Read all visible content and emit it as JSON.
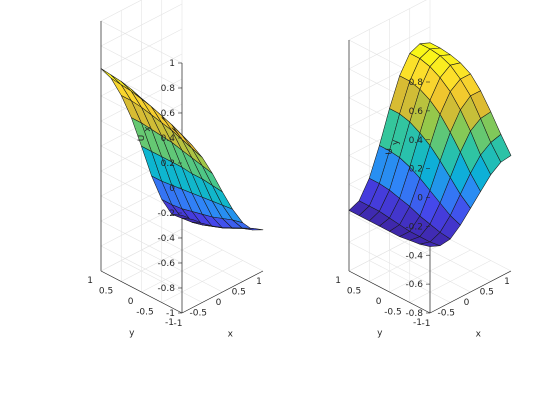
{
  "chart_data": [
    {
      "type": "surface",
      "zlabel": "U",
      "zlabel_sub": "x",
      "xlabel": "x",
      "ylabel": "y",
      "xlim": [
        -1,
        1
      ],
      "ylim": [
        -1,
        1
      ],
      "zlim": [
        -1,
        1
      ],
      "xticks": [
        "-1",
        "-0.5",
        "0",
        "0.5",
        "1"
      ],
      "yticks": [
        "-1",
        "-0.5",
        "0",
        "0.5",
        "1"
      ],
      "zticks": [
        "-1",
        "-0.8",
        "-0.6",
        "-0.4",
        "-0.2",
        "0",
        "0.2",
        "0.4",
        "0.6",
        "0.8",
        "1"
      ],
      "colormap": [
        "#3e26a8",
        "#4742ea",
        "#2e87f7",
        "#0ab4d4",
        "#35c69c",
        "#91c94c",
        "#e7b92e",
        "#fcda2e",
        "#f9fb15"
      ],
      "grid": true,
      "mesh_x": [
        -1,
        -0.75,
        -0.5,
        -0.25,
        0,
        0.25,
        0.5,
        0.75,
        1
      ],
      "mesh_y": [
        -1,
        -0.75,
        -0.5,
        -0.25,
        0,
        0.25,
        0.5,
        0.75,
        1
      ],
      "z": [
        [
          0.4,
          0.3,
          0.16,
          -0.01,
          -0.2,
          -0.38,
          -0.53,
          -0.63,
          -0.67
        ],
        [
          0.44,
          0.34,
          0.19,
          0.01,
          -0.19,
          -0.39,
          -0.55,
          -0.66,
          -0.7
        ],
        [
          0.48,
          0.38,
          0.22,
          0.03,
          -0.18,
          -0.4,
          -0.58,
          -0.7,
          -0.74
        ],
        [
          0.52,
          0.41,
          0.25,
          0.05,
          -0.18,
          -0.41,
          -0.61,
          -0.74,
          -0.78
        ],
        [
          0.55,
          0.44,
          0.27,
          0.07,
          -0.17,
          -0.42,
          -0.63,
          -0.77,
          -0.82
        ],
        [
          0.58,
          0.46,
          0.29,
          0.08,
          -0.17,
          -0.43,
          -0.65,
          -0.8,
          -0.85
        ],
        [
          0.6,
          0.48,
          0.31,
          0.09,
          -0.17,
          -0.44,
          -0.67,
          -0.82,
          -0.87
        ],
        [
          0.61,
          0.49,
          0.32,
          0.1,
          -0.17,
          -0.45,
          -0.68,
          -0.83,
          -0.88
        ],
        [
          0.62,
          0.5,
          0.32,
          0.1,
          -0.17,
          -0.45,
          -0.68,
          -0.84,
          -0.89
        ]
      ]
    },
    {
      "type": "surface",
      "zlabel": "U",
      "zlabel_sub": "y",
      "xlabel": "x",
      "ylabel": "y",
      "xlim": [
        -1,
        1
      ],
      "ylim": [
        -1,
        1
      ],
      "zlim": [
        -0.8,
        0.8
      ],
      "xticks": [
        "-1",
        "-0.5",
        "0",
        "0.5",
        "1"
      ],
      "yticks": [
        "-1",
        "-0.5",
        "0",
        "0.5",
        "1"
      ],
      "zticks": [
        "-0.8",
        "-0.6",
        "-0.4",
        "-0.2",
        "0",
        "0.2",
        "0.4",
        "0.6",
        "0.8"
      ],
      "colormap": [
        "#3e26a8",
        "#4742ea",
        "#2e87f7",
        "#0ab4d4",
        "#35c69c",
        "#91c94c",
        "#e7b92e",
        "#fcda2e",
        "#f9fb15"
      ],
      "grid": true,
      "mesh_x": [
        -1,
        -0.75,
        -0.5,
        -0.25,
        0,
        0.25,
        0.5,
        0.75,
        1
      ],
      "mesh_y": [
        -1,
        -0.75,
        -0.5,
        -0.25,
        0,
        0.25,
        0.5,
        0.75,
        1
      ],
      "z": [
        [
          -0.34,
          -0.37,
          -0.36,
          -0.3,
          -0.22,
          -0.14,
          -0.06,
          -0.01,
          0.0
        ],
        [
          -0.36,
          -0.38,
          -0.35,
          -0.27,
          -0.16,
          -0.05,
          0.04,
          0.09,
          0.11
        ],
        [
          -0.37,
          -0.38,
          -0.33,
          -0.22,
          -0.08,
          0.06,
          0.17,
          0.22,
          0.23
        ],
        [
          -0.38,
          -0.38,
          -0.31,
          -0.17,
          0.0,
          0.16,
          0.28,
          0.34,
          0.34
        ],
        [
          -0.38,
          -0.37,
          -0.28,
          -0.12,
          0.07,
          0.25,
          0.37,
          0.42,
          0.42
        ],
        [
          -0.38,
          -0.36,
          -0.26,
          -0.08,
          0.12,
          0.31,
          0.43,
          0.48,
          0.46
        ],
        [
          -0.38,
          -0.35,
          -0.24,
          -0.05,
          0.16,
          0.35,
          0.47,
          0.51,
          0.48
        ],
        [
          -0.38,
          -0.35,
          -0.23,
          -0.04,
          0.18,
          0.37,
          0.49,
          0.52,
          0.49
        ],
        [
          -0.38,
          -0.35,
          -0.23,
          -0.04,
          0.18,
          0.37,
          0.49,
          0.52,
          0.49
        ]
      ]
    }
  ]
}
